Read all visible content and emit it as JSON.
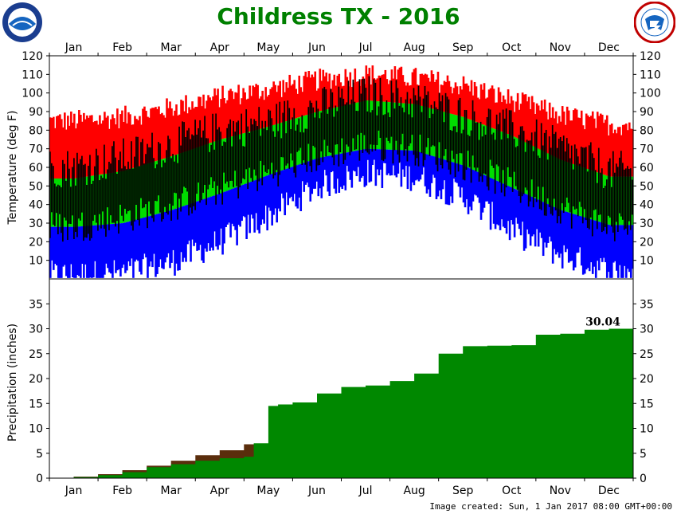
{
  "chart_data": [
    {
      "type": "area",
      "panel": "temperature",
      "title": "Childress TX - 2016",
      "ylabel": "Temperature (deg F)",
      "ylim": [
        0,
        120
      ],
      "yticks": [
        10,
        20,
        30,
        40,
        50,
        60,
        70,
        80,
        90,
        100,
        110,
        120
      ],
      "months": [
        "Jan",
        "Feb",
        "Mar",
        "Apr",
        "May",
        "Jun",
        "Jul",
        "Aug",
        "Sep",
        "Oct",
        "Nov",
        "Dec"
      ],
      "series": [
        {
          "name": "",
          "color": "#ff0000",
          "values": [
            85,
            87,
            92,
            98,
            102,
            107,
            110,
            108,
            104,
            96,
            88,
            83
          ],
          "role": "record_high"
        },
        {
          "name": "",
          "color": "#00dd00",
          "values": [
            54,
            58,
            66,
            75,
            82,
            90,
            96,
            94,
            87,
            77,
            64,
            55
          ],
          "role": "normal_high"
        },
        {
          "name": "",
          "color": "#0000ff",
          "values": [
            28,
            30,
            37,
            46,
            56,
            65,
            70,
            69,
            61,
            49,
            37,
            29
          ],
          "role": "normal_low"
        },
        {
          "name": "",
          "color": "#ffffff",
          "values": [
            2,
            3,
            9,
            20,
            34,
            50,
            57,
            55,
            44,
            26,
            13,
            4
          ],
          "role": "record_low"
        },
        {
          "name": "",
          "color": "#000000",
          "values_high": [
            60,
            65,
            72,
            80,
            84,
            92,
            99,
            96,
            88,
            80,
            70,
            58
          ],
          "values_low": [
            28,
            33,
            39,
            48,
            57,
            66,
            72,
            70,
            62,
            50,
            38,
            28
          ],
          "role": "observed_range"
        }
      ],
      "grid": false
    },
    {
      "type": "area",
      "panel": "precipitation",
      "ylabel": "Precipitation (inches)",
      "ylim": [
        0,
        40
      ],
      "yticks": [
        0,
        5,
        10,
        15,
        20,
        25,
        30,
        35
      ],
      "months": [
        "Jan",
        "Feb",
        "Mar",
        "Apr",
        "May",
        "Jun",
        "Jul",
        "Aug",
        "Sep",
        "Oct",
        "Nov",
        "Dec"
      ],
      "series": [
        {
          "name": "",
          "color": "#008800",
          "x_month": [
            0,
            0.5,
            1,
            1.5,
            2,
            2.5,
            3,
            3.5,
            4,
            4.2,
            4.5,
            4.7,
            5,
            5.5,
            6,
            6.5,
            7,
            7.5,
            8,
            8.5,
            9,
            9.5,
            10,
            10.5,
            11,
            11.5,
            12
          ],
          "values": [
            0,
            0.2,
            0.6,
            1.2,
            2.2,
            2.8,
            3.5,
            4.0,
            4.3,
            7.0,
            14.5,
            14.8,
            15.2,
            17.0,
            18.3,
            18.6,
            19.5,
            21.0,
            25.0,
            26.5,
            26.6,
            26.7,
            28.8,
            29.0,
            29.8,
            30.0,
            30.04
          ],
          "role": "observed_cumulative"
        },
        {
          "name": "",
          "color": "#5a2d0c",
          "x_month": [
            0,
            0.5,
            1,
            1.5,
            2,
            2.5,
            3,
            3.5,
            4,
            4.5
          ],
          "values": [
            0,
            0.3,
            0.8,
            1.6,
            2.5,
            3.5,
            4.6,
            5.6,
            6.8,
            7.6
          ],
          "role": "normal_cumulative"
        }
      ],
      "annotation": "30.04"
    }
  ],
  "page": {
    "title": "Childress TX - 2016",
    "footer": "Image created: Sun, 1 Jan 2017 08:00 GMT+00:00",
    "title_color": "#008000"
  }
}
